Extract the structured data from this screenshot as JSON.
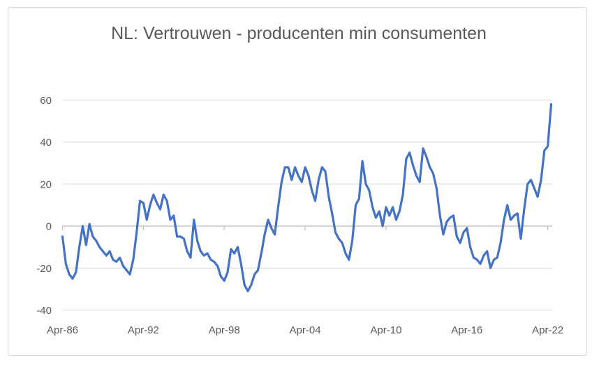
{
  "window": {
    "background": "#ffffff",
    "frame_border_color": "#d9d9d9"
  },
  "chart_data": {
    "type": "line",
    "title": "NL: Vertrouwen - producenten min consumenten",
    "legend": "none",
    "grid": "horizontal",
    "xlabel": "",
    "ylabel": "",
    "ylim": [
      -40,
      60
    ],
    "xlim": [
      1986.25,
      2022.58
    ],
    "y_ticks": [
      60,
      40,
      20,
      0,
      -20,
      -40
    ],
    "x_ticks": [
      {
        "label": "Apr-86",
        "year": 1986.25
      },
      {
        "label": "Apr-92",
        "year": 1992.25
      },
      {
        "label": "Apr-98",
        "year": 1998.25
      },
      {
        "label": "Apr-04",
        "year": 2004.25
      },
      {
        "label": "Apr-10",
        "year": 2010.25
      },
      {
        "label": "Apr-16",
        "year": 2016.25
      },
      {
        "label": "Apr-22",
        "year": 2022.25
      }
    ],
    "colors": {
      "line": "#4472C4",
      "gridline": "#d9d9d9",
      "axis": "#bfbfbf",
      "text": "#595959"
    },
    "series": [
      {
        "name": "Vertrouwen producenten min consumenten",
        "color": "#4472C4",
        "points": [
          [
            1986.25,
            -5
          ],
          [
            1986.5,
            -18
          ],
          [
            1986.75,
            -23
          ],
          [
            1987.0,
            -25
          ],
          [
            1987.25,
            -22
          ],
          [
            1987.5,
            -10
          ],
          [
            1987.75,
            0
          ],
          [
            1988.0,
            -9
          ],
          [
            1988.25,
            1
          ],
          [
            1988.5,
            -5
          ],
          [
            1988.75,
            -7
          ],
          [
            1989.0,
            -10
          ],
          [
            1989.25,
            -12
          ],
          [
            1989.5,
            -14
          ],
          [
            1989.75,
            -12
          ],
          [
            1990.0,
            -16
          ],
          [
            1990.25,
            -17
          ],
          [
            1990.5,
            -15
          ],
          [
            1990.75,
            -19
          ],
          [
            1991.0,
            -21
          ],
          [
            1991.25,
            -23
          ],
          [
            1991.5,
            -16
          ],
          [
            1991.75,
            -3
          ],
          [
            1992.0,
            12
          ],
          [
            1992.25,
            11
          ],
          [
            1992.5,
            3
          ],
          [
            1992.75,
            10
          ],
          [
            1993.0,
            15
          ],
          [
            1993.25,
            11
          ],
          [
            1993.5,
            8
          ],
          [
            1993.75,
            15
          ],
          [
            1994.0,
            12
          ],
          [
            1994.25,
            3
          ],
          [
            1994.5,
            5
          ],
          [
            1994.75,
            -5
          ],
          [
            1995.0,
            -5
          ],
          [
            1995.25,
            -6
          ],
          [
            1995.5,
            -12
          ],
          [
            1995.75,
            -15
          ],
          [
            1996.0,
            3
          ],
          [
            1996.25,
            -7
          ],
          [
            1996.5,
            -12
          ],
          [
            1996.75,
            -14
          ],
          [
            1997.0,
            -13
          ],
          [
            1997.25,
            -16
          ],
          [
            1997.5,
            -17
          ],
          [
            1997.75,
            -19
          ],
          [
            1998.0,
            -24
          ],
          [
            1998.25,
            -26
          ],
          [
            1998.5,
            -22
          ],
          [
            1998.75,
            -11
          ],
          [
            1999.0,
            -13
          ],
          [
            1999.25,
            -10
          ],
          [
            1999.5,
            -18
          ],
          [
            1999.75,
            -28
          ],
          [
            2000.0,
            -31
          ],
          [
            2000.25,
            -28
          ],
          [
            2000.5,
            -23
          ],
          [
            2000.75,
            -21
          ],
          [
            2001.0,
            -13
          ],
          [
            2001.25,
            -4
          ],
          [
            2001.5,
            3
          ],
          [
            2001.75,
            -1
          ],
          [
            2002.0,
            -4
          ],
          [
            2002.25,
            9
          ],
          [
            2002.5,
            21
          ],
          [
            2002.75,
            28
          ],
          [
            2003.0,
            28
          ],
          [
            2003.25,
            22
          ],
          [
            2003.5,
            28
          ],
          [
            2003.75,
            24
          ],
          [
            2004.0,
            21
          ],
          [
            2004.25,
            28
          ],
          [
            2004.5,
            24
          ],
          [
            2004.75,
            17
          ],
          [
            2005.0,
            12
          ],
          [
            2005.25,
            22
          ],
          [
            2005.5,
            28
          ],
          [
            2005.75,
            26
          ],
          [
            2006.0,
            14
          ],
          [
            2006.25,
            6
          ],
          [
            2006.5,
            -3
          ],
          [
            2006.75,
            -6
          ],
          [
            2007.0,
            -8
          ],
          [
            2007.25,
            -13
          ],
          [
            2007.5,
            -16
          ],
          [
            2007.75,
            -7
          ],
          [
            2008.0,
            10
          ],
          [
            2008.25,
            13
          ],
          [
            2008.5,
            31
          ],
          [
            2008.75,
            20
          ],
          [
            2009.0,
            17
          ],
          [
            2009.25,
            9
          ],
          [
            2009.5,
            4
          ],
          [
            2009.75,
            7
          ],
          [
            2010.0,
            0
          ],
          [
            2010.25,
            9
          ],
          [
            2010.5,
            5
          ],
          [
            2010.75,
            9
          ],
          [
            2011.0,
            3
          ],
          [
            2011.25,
            7
          ],
          [
            2011.5,
            15
          ],
          [
            2011.75,
            32
          ],
          [
            2012.0,
            35
          ],
          [
            2012.25,
            29
          ],
          [
            2012.5,
            24
          ],
          [
            2012.75,
            21
          ],
          [
            2013.0,
            37
          ],
          [
            2013.25,
            33
          ],
          [
            2013.5,
            28
          ],
          [
            2013.75,
            25
          ],
          [
            2014.0,
            18
          ],
          [
            2014.25,
            5
          ],
          [
            2014.5,
            -4
          ],
          [
            2014.75,
            2
          ],
          [
            2015.0,
            4
          ],
          [
            2015.25,
            5
          ],
          [
            2015.5,
            -5
          ],
          [
            2015.75,
            -8
          ],
          [
            2016.0,
            -3
          ],
          [
            2016.25,
            -1
          ],
          [
            2016.5,
            -10
          ],
          [
            2016.75,
            -15
          ],
          [
            2017.0,
            -16
          ],
          [
            2017.25,
            -18
          ],
          [
            2017.5,
            -14
          ],
          [
            2017.75,
            -12
          ],
          [
            2018.0,
            -20
          ],
          [
            2018.25,
            -16
          ],
          [
            2018.5,
            -15
          ],
          [
            2018.75,
            -8
          ],
          [
            2019.0,
            3
          ],
          [
            2019.25,
            10
          ],
          [
            2019.5,
            3
          ],
          [
            2019.75,
            5
          ],
          [
            2020.0,
            6
          ],
          [
            2020.25,
            -6
          ],
          [
            2020.5,
            8
          ],
          [
            2020.75,
            20
          ],
          [
            2021.0,
            22
          ],
          [
            2021.25,
            18
          ],
          [
            2021.5,
            14
          ],
          [
            2021.75,
            22
          ],
          [
            2022.0,
            36
          ],
          [
            2022.25,
            38
          ],
          [
            2022.5,
            58
          ]
        ]
      }
    ]
  }
}
